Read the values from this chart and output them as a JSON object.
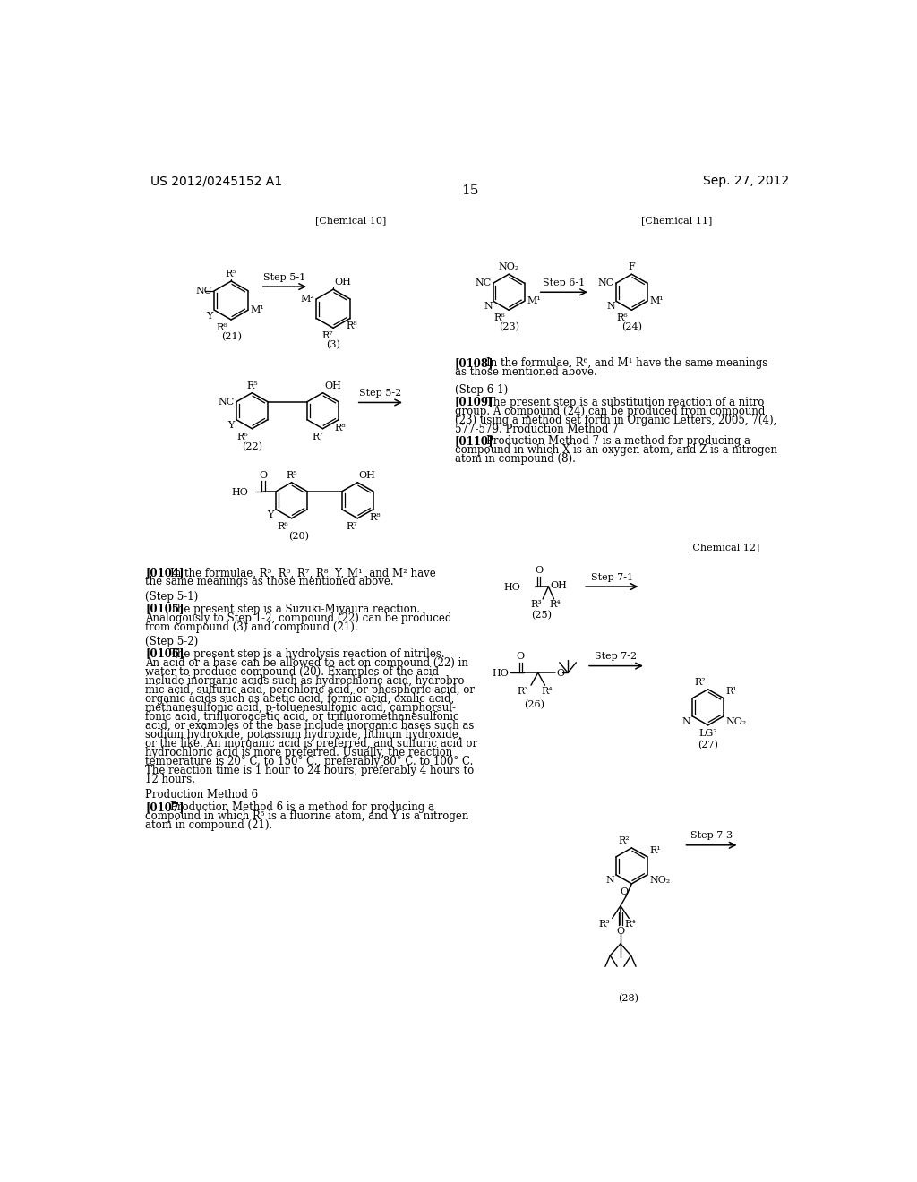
{
  "page_left": "US 2012/0245152 A1",
  "page_right": "Sep. 27, 2012",
  "page_number": "15",
  "bg": "#ffffff",
  "chem10_label": "[Chemical 10]",
  "chem11_label": "[Chemical 11]",
  "chem12_label": "[Chemical 12]"
}
